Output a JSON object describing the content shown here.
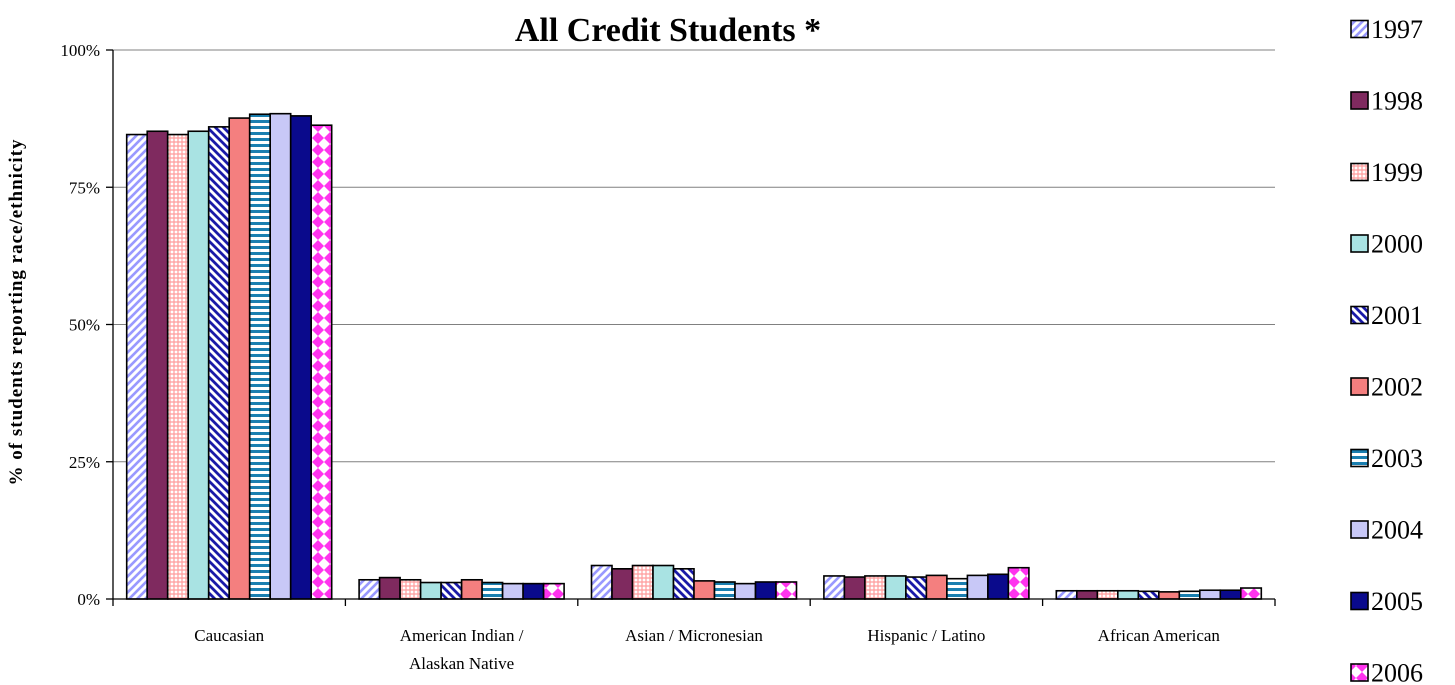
{
  "chart_data": {
    "type": "bar",
    "title": "All Credit Students *",
    "xlabel": "",
    "ylabel": "% of students reporting race/ethnicity",
    "ylim": [
      0,
      100
    ],
    "yticks": [
      "0%",
      "25%",
      "50%",
      "75%",
      "100%"
    ],
    "ytick_values": [
      0,
      25,
      50,
      75,
      100
    ],
    "grid": true,
    "legend_position": "right",
    "categories": [
      [
        "Caucasian"
      ],
      [
        "American Indian /",
        "Alaskan Native"
      ],
      [
        "Asian / Micronesian"
      ],
      [
        "Hispanic / Latino"
      ],
      [
        "African American"
      ]
    ],
    "series": [
      {
        "name": "1997",
        "color": "#9999ff",
        "pattern": "diag-up",
        "values": [
          84.6,
          3.5,
          6.1,
          4.2,
          1.5
        ]
      },
      {
        "name": "1998",
        "color": "#7f2a5f",
        "pattern": "solid",
        "values": [
          85.2,
          3.9,
          5.5,
          4.0,
          1.5
        ]
      },
      {
        "name": "1999",
        "color": "#ff9c9c",
        "pattern": "grid",
        "values": [
          84.6,
          3.5,
          6.1,
          4.2,
          1.5
        ]
      },
      {
        "name": "2000",
        "color": "#a9e3e3",
        "pattern": "solid",
        "values": [
          85.2,
          3.0,
          6.1,
          4.2,
          1.5
        ]
      },
      {
        "name": "2001",
        "color": "#1a1aa8",
        "pattern": "diag-down",
        "values": [
          86.0,
          3.0,
          5.5,
          4.0,
          1.4
        ]
      },
      {
        "name": "2002",
        "color": "#f47f7f",
        "pattern": "solid",
        "values": [
          87.6,
          3.5,
          3.3,
          4.3,
          1.3
        ]
      },
      {
        "name": "2003",
        "color": "#1a7fb0",
        "pattern": "hstripe",
        "values": [
          88.3,
          3.0,
          3.1,
          3.7,
          1.4
        ]
      },
      {
        "name": "2004",
        "color": "#c8c8f7",
        "pattern": "solid",
        "values": [
          88.4,
          2.8,
          2.8,
          4.3,
          1.6
        ]
      },
      {
        "name": "2005",
        "color": "#0a0a8c",
        "pattern": "solid",
        "values": [
          88.0,
          2.8,
          3.1,
          4.5,
          1.6
        ]
      },
      {
        "name": "2006",
        "color": "#ff33ee",
        "pattern": "checker",
        "values": [
          86.3,
          2.8,
          3.1,
          5.7,
          2.0
        ]
      }
    ]
  }
}
